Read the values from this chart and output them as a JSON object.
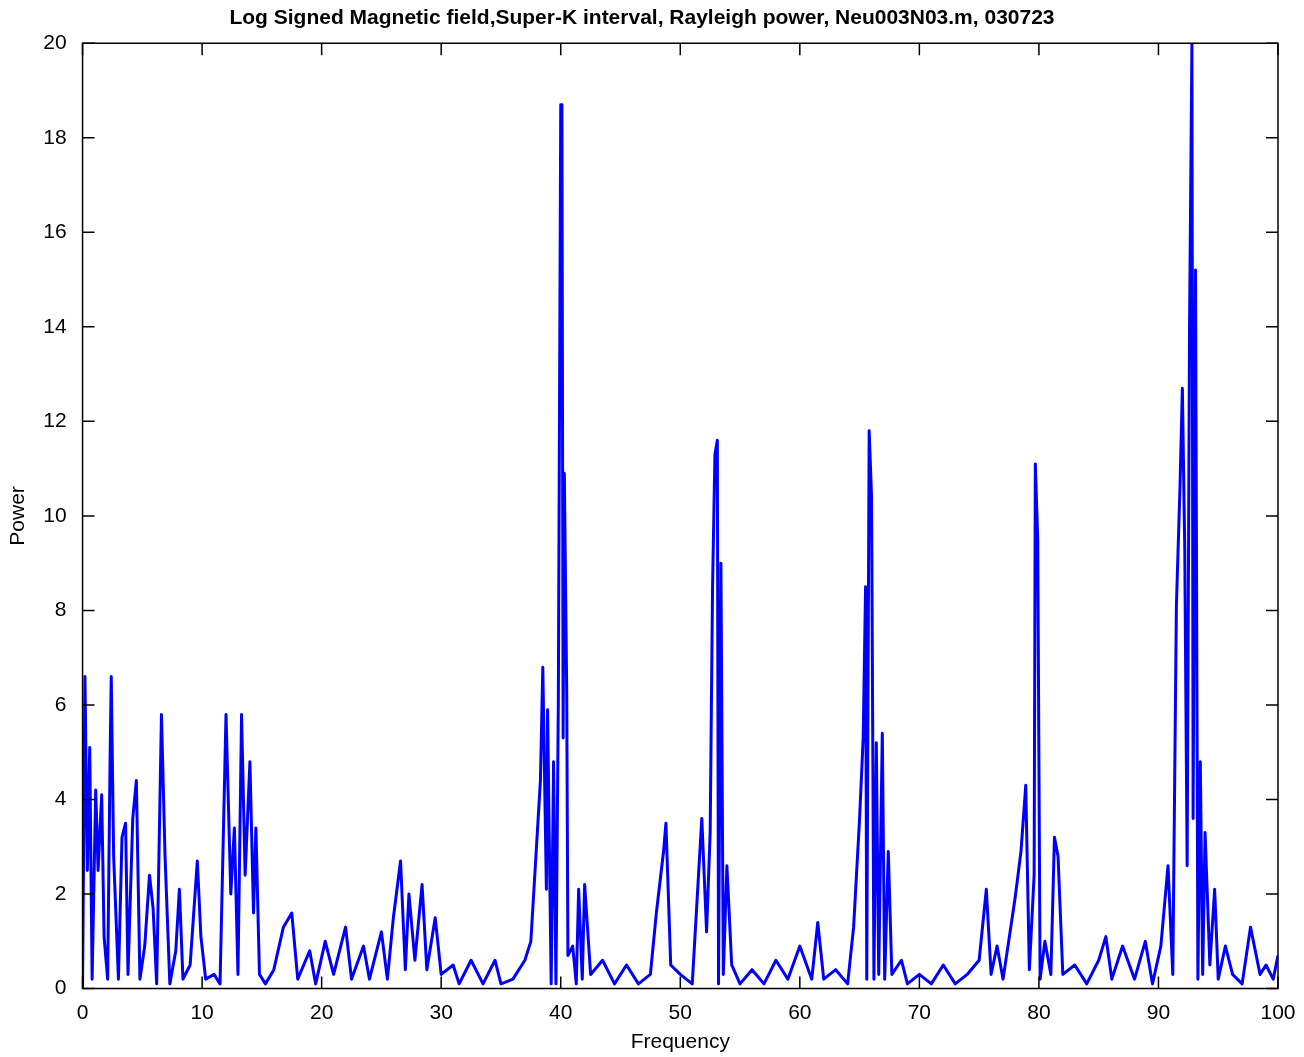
{
  "chart_data": {
    "type": "line",
    "title": "Log Signed Magnetic field,Super-K interval, Rayleigh power, Neu003N03.m, 030723",
    "xlabel": "Frequency",
    "ylabel": "Power",
    "color": "#0000ff",
    "x": [
      0,
      0.2,
      0.4,
      0.6,
      0.8,
      1.1,
      1.3,
      1.6,
      1.8,
      2.1,
      2.3,
      2.4,
      2.6,
      3.0,
      3.3,
      3.6,
      3.8,
      4.2,
      4.5,
      4.8,
      5.2,
      5.6,
      5.9,
      6.2,
      6.6,
      6.9,
      7.3,
      7.8,
      8.1,
      8.4,
      9,
      9.6,
      9.9,
      10.3,
      11,
      11.5,
      12,
      12.4,
      12.7,
      13,
      13.3,
      13.6,
      14,
      14.3,
      14.5,
      14.8,
      15.3,
      16,
      16.8,
      17.5,
      18,
      19,
      19.5,
      20.3,
      21,
      22,
      22.5,
      23.5,
      24,
      25,
      25.5,
      26,
      26.6,
      27,
      27.3,
      27.8,
      28.4,
      28.8,
      29.5,
      30,
      31,
      31.5,
      32.5,
      33.5,
      34.5,
      35,
      36,
      37,
      37.5,
      38.3,
      38.5,
      38.8,
      38.9,
      39.2,
      39.4,
      39.6,
      39.8,
      40,
      40.1,
      40.2,
      40.3,
      40.5,
      40.6,
      41,
      41.3,
      41.5,
      41.8,
      42,
      42.5,
      43.5,
      44.5,
      45.5,
      46.5,
      47.5,
      48,
      48.6,
      48.8,
      49.2,
      50,
      51,
      51.8,
      52.2,
      52.5,
      52.7,
      52.9,
      53.1,
      53.2,
      53.4,
      53.6,
      53.9,
      54.3,
      55,
      56,
      57,
      58,
      59,
      60,
      61,
      61.5,
      62,
      63,
      64,
      64.5,
      65,
      65.3,
      65.5,
      65.6,
      65.8,
      66,
      66.2,
      66.4,
      66.6,
      66.9,
      67.1,
      67.4,
      67.7,
      68.5,
      69,
      70,
      71,
      72,
      73,
      74,
      75,
      75.6,
      76,
      76.5,
      77,
      78,
      78.5,
      78.9,
      79.2,
      79.6,
      79.7,
      79.9,
      80.1,
      80.5,
      81,
      81.3,
      81.6,
      82,
      83,
      84,
      85,
      85.6,
      86.1,
      87,
      88,
      88.9,
      89.5,
      90.2,
      90.8,
      91.2,
      91.5,
      91.8,
      92,
      92.2,
      92.4,
      92.6,
      92.8,
      92.9,
      93.1,
      93.3,
      93.5,
      93.7,
      93.9,
      94.3,
      94.7,
      95,
      95.6,
      96.2,
      97,
      97.7,
      98.5,
      99,
      99.6,
      100
    ],
    "values": [
      0,
      6.6,
      2.5,
      5.1,
      0.2,
      4.2,
      2.5,
      4.1,
      1.1,
      0.2,
      4.8,
      6.6,
      2.8,
      0.2,
      3.2,
      3.5,
      0.3,
      3.6,
      4.4,
      0.2,
      0.9,
      2.4,
      1.7,
      0.1,
      5.8,
      2.8,
      0.1,
      0.8,
      2.1,
      0.2,
      0.5,
      2.7,
      1.1,
      0.2,
      0.3,
      0.1,
      5.8,
      2.0,
      3.4,
      0.3,
      5.8,
      2.4,
      4.8,
      1.6,
      3.4,
      0.3,
      0.1,
      0.4,
      1.3,
      1.6,
      0.2,
      0.8,
      0.1,
      1.0,
      0.3,
      1.3,
      0.2,
      0.9,
      0.2,
      1.2,
      0.2,
      1.5,
      2.7,
      0.4,
      2.0,
      0.6,
      2.2,
      0.4,
      1.5,
      0.3,
      0.5,
      0.1,
      0.6,
      0.1,
      0.6,
      0.1,
      0.2,
      0.6,
      1.0,
      4.4,
      6.8,
      2.1,
      5.9,
      0.1,
      4.8,
      0.1,
      6.1,
      18.7,
      18.7,
      5.3,
      10.9,
      6.3,
      0.7,
      0.9,
      0.1,
      2.1,
      0.2,
      2.2,
      0.3,
      0.6,
      0.1,
      0.5,
      0.1,
      0.3,
      1.6,
      2.9,
      3.5,
      0.5,
      0.3,
      0.1,
      3.6,
      1.2,
      3.3,
      8.5,
      11.3,
      11.6,
      0.1,
      9.0,
      0.3,
      2.6,
      0.5,
      0.1,
      0.4,
      0.1,
      0.6,
      0.2,
      0.9,
      0.2,
      1.4,
      0.2,
      0.4,
      0.1,
      1.3,
      3.6,
      5.3,
      8.5,
      0.2,
      11.8,
      10.4,
      0.2,
      5.2,
      0.3,
      5.4,
      0.2,
      2.9,
      0.3,
      0.6,
      0.1,
      0.3,
      0.1,
      0.5,
      0.1,
      0.3,
      0.6,
      2.1,
      0.3,
      0.9,
      0.2,
      1.9,
      2.9,
      4.3,
      0.4,
      2.4,
      11.1,
      9.5,
      0.2,
      1.0,
      0.3,
      3.2,
      2.8,
      0.3,
      0.5,
      0.1,
      0.6,
      1.1,
      0.2,
      0.9,
      0.2,
      1.0,
      0.1,
      0.9,
      2.6,
      0.3,
      8.1,
      10.6,
      12.7,
      9.3,
      2.6,
      14.0,
      20,
      3.6,
      15.2,
      0.2,
      4.8,
      0.3,
      3.3,
      0.5,
      2.1,
      0.2,
      0.9,
      0.3,
      0.1,
      1.3,
      0.3,
      0.5,
      0.2,
      0.7
    ],
    "xlim": [
      0,
      100
    ],
    "ylim": [
      0,
      20
    ],
    "xticks": [
      0,
      10,
      20,
      30,
      40,
      50,
      60,
      70,
      80,
      90,
      100
    ],
    "yticks": [
      0,
      2,
      4,
      6,
      8,
      10,
      12,
      14,
      16,
      18,
      20
    ]
  }
}
